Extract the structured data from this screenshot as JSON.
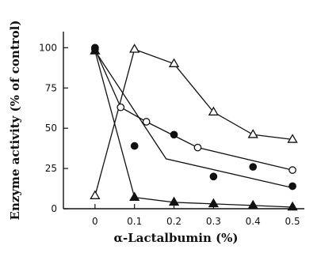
{
  "chart_data": {
    "type": "line",
    "xlabel": "α-Lactalbumin (%)",
    "ylabel": "Enzyme activity (% of control)",
    "xlim": [
      -0.08,
      0.53
    ],
    "ylim": [
      0,
      110
    ],
    "x_ticks": [
      0,
      0.1,
      0.2,
      0.3,
      0.4,
      0.5
    ],
    "x_tick_labels": [
      "0",
      "0.1",
      "0.2",
      "0.3",
      "0.4",
      "0.5"
    ],
    "y_ticks": [
      0,
      25,
      50,
      75,
      100
    ],
    "y_tick_labels": [
      "0",
      "25",
      "50",
      "75",
      "100"
    ],
    "grid": false,
    "series": [
      {
        "marker": "triangle-open",
        "line_x": [
          0,
          0.1,
          0.2,
          0.3,
          0.4,
          0.5
        ],
        "line_y": [
          8,
          99,
          90,
          60,
          46,
          43
        ],
        "x": [
          0,
          0.1,
          0.2,
          0.3,
          0.4,
          0.5
        ],
        "y": [
          8,
          99,
          90,
          60,
          46,
          43
        ]
      },
      {
        "marker": "circle-open",
        "line_x": [
          0,
          0.065,
          0.13,
          0.26,
          0.5
        ],
        "line_y": [
          99,
          63,
          54,
          38,
          24
        ],
        "x": [
          0,
          0.065,
          0.13,
          0.26,
          0.5
        ],
        "y": [
          99,
          63,
          54,
          38,
          24
        ]
      },
      {
        "marker": "circle-filled",
        "line_x": [
          0,
          0.18,
          0.5
        ],
        "line_y": [
          98,
          31,
          13
        ],
        "x": [
          0,
          0.1,
          0.2,
          0.3,
          0.4,
          0.5
        ],
        "y": [
          100,
          39,
          46,
          20,
          26,
          14
        ]
      },
      {
        "marker": "triangle-filled",
        "line_x": [
          0,
          0.1,
          0.2,
          0.3,
          0.4,
          0.5
        ],
        "line_y": [
          98,
          7,
          4,
          3,
          2,
          1
        ],
        "x": [
          0,
          0.1,
          0.2,
          0.3,
          0.4,
          0.5
        ],
        "y": [
          98,
          7,
          4,
          3,
          2,
          1
        ]
      }
    ]
  }
}
